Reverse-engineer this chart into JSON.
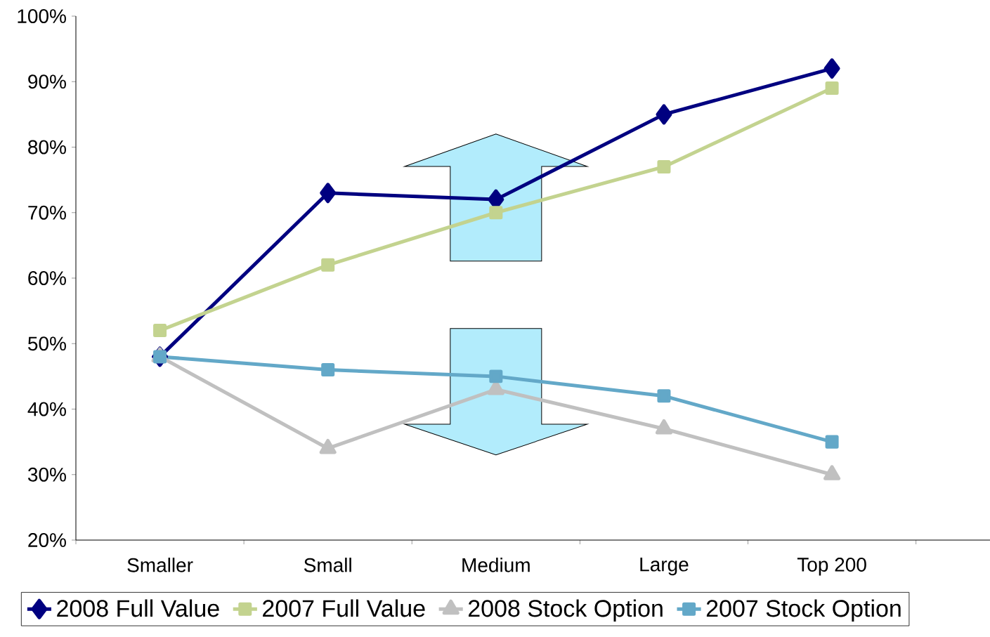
{
  "chart_data": {
    "type": "line",
    "categories": [
      "Smaller",
      "Small",
      "Medium",
      "Large",
      "Top 200"
    ],
    "series": [
      {
        "name": "2008 Full Value",
        "color": "#000080",
        "marker": "diamond",
        "values": [
          48,
          73,
          72,
          85,
          92
        ]
      },
      {
        "name": "2007 Full Value",
        "color": "#c3d38f",
        "marker": "square",
        "values": [
          52,
          62,
          70,
          77,
          89
        ]
      },
      {
        "name": "2008 Stock Option",
        "color": "#c0c0c0",
        "marker": "triangle",
        "values": [
          48,
          34,
          43,
          37,
          30
        ]
      },
      {
        "name": "2007 Stock Option",
        "color": "#63a8c8",
        "marker": "square",
        "values": [
          48,
          46,
          45,
          42,
          35
        ]
      }
    ],
    "ylim": [
      20,
      100
    ],
    "yticks": [
      {
        "value": 20,
        "label": "20%"
      },
      {
        "value": 30,
        "label": "30%"
      },
      {
        "value": 40,
        "label": "40%"
      },
      {
        "value": 50,
        "label": "50%"
      },
      {
        "value": 60,
        "label": "60%"
      },
      {
        "value": 70,
        "label": "70%"
      },
      {
        "value": 80,
        "label": "80%"
      },
      {
        "value": 90,
        "label": "90%"
      },
      {
        "value": 100,
        "label": "100%"
      }
    ],
    "grid": false,
    "legend": "bottom",
    "line_style": "solid"
  }
}
